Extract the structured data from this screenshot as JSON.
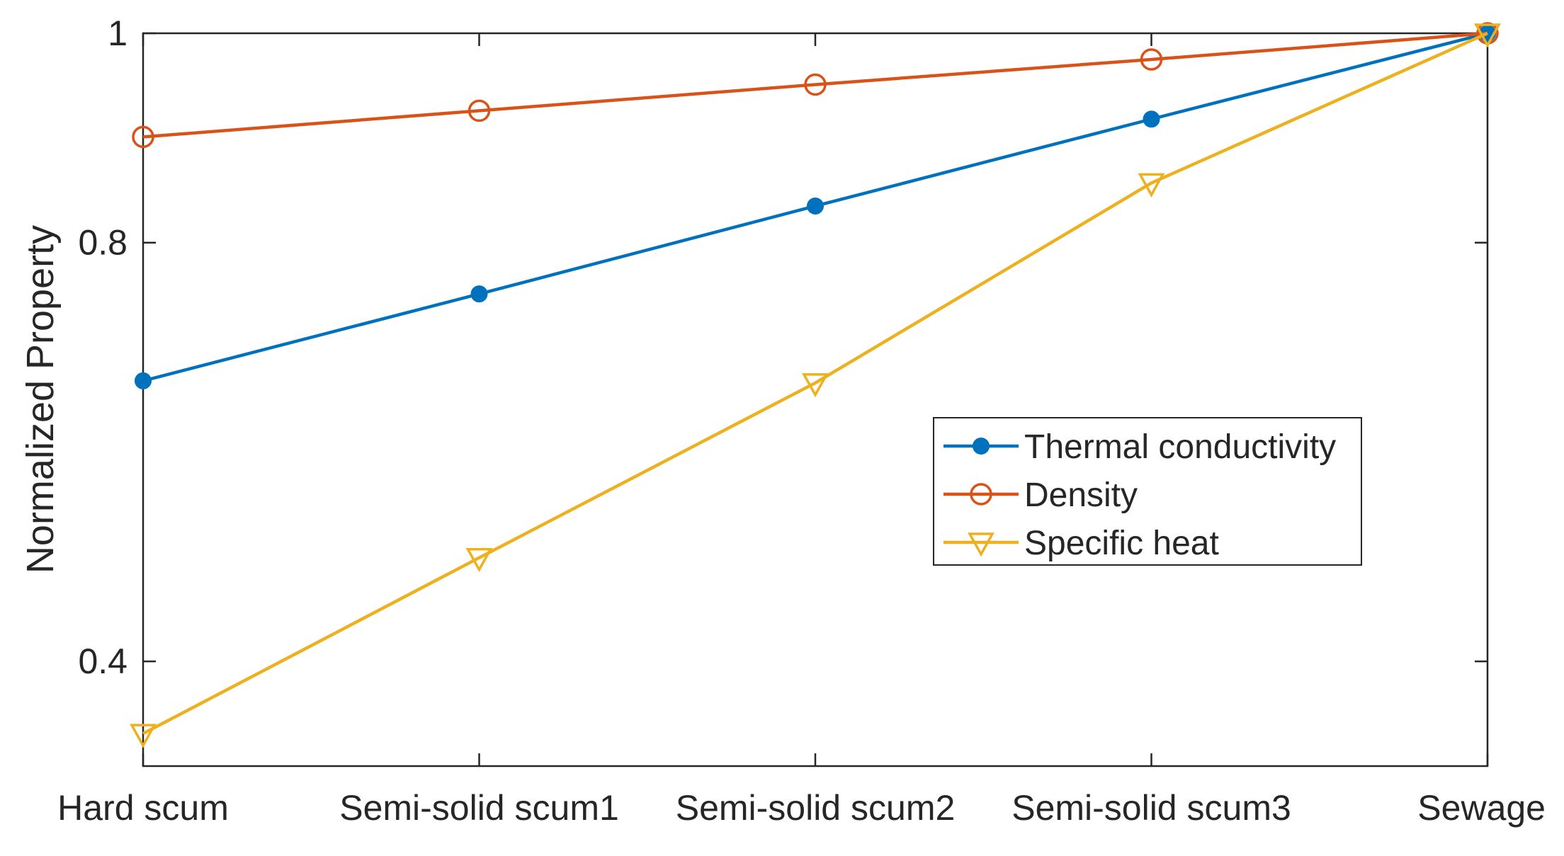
{
  "chart_data": {
    "type": "line",
    "categories": [
      "Hard scum",
      "Semi-solid scum1",
      "Semi-solid scum2",
      "Semi-solid scum3",
      "Sewage"
    ],
    "series": [
      {
        "name": "Thermal conductivity",
        "values": [
          0.668,
          0.751,
          0.835,
          0.918,
          1.0
        ],
        "color": "#0072BD",
        "marker": "filled-circle"
      },
      {
        "name": "Density",
        "values": [
          0.901,
          0.926,
          0.951,
          0.975,
          1.0
        ],
        "color": "#D95319",
        "marker": "open-circle"
      },
      {
        "name": "Specific heat",
        "values": [
          0.331,
          0.499,
          0.666,
          0.857,
          1.0
        ],
        "color": "#EDB120",
        "marker": "open-triangle-down"
      }
    ],
    "ylabel": "Normalized Property",
    "xlabel": "",
    "ylim": [
      0.3,
      1.0
    ],
    "yticks": [
      0.4,
      0.8,
      1.0
    ],
    "ytick_labels": [
      "0.4",
      "0.8",
      "1"
    ],
    "grid": false,
    "legend_position": "center-right"
  }
}
